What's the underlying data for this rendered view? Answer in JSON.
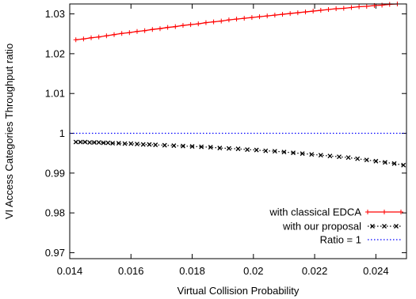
{
  "chart_data": {
    "type": "line",
    "xlabel": "Virtual Collision Probability",
    "ylabel": "VI Access Categories Throughput ratio",
    "xlim": [
      0.014,
      0.025
    ],
    "ylim": [
      0.9685,
      1.0325
    ],
    "x_ticks": [
      "0.014",
      "0.016",
      "0.018",
      "0.02",
      "0.022",
      "0.024"
    ],
    "y_ticks": [
      "0.97",
      "0.98",
      "0.99",
      "1",
      "1.01",
      "1.02",
      "1.03"
    ],
    "grid": false,
    "legend_position": "bottom-right",
    "series": [
      {
        "name": "with classical EDCA",
        "color": "#ff0000",
        "style": "solid",
        "marker": "plus",
        "x": [
          0.0142,
          0.01445,
          0.0147,
          0.01495,
          0.0152,
          0.01545,
          0.0157,
          0.01595,
          0.0162,
          0.01645,
          0.0167,
          0.01695,
          0.0172,
          0.01745,
          0.0177,
          0.01795,
          0.0182,
          0.01845,
          0.0187,
          0.01895,
          0.0192,
          0.01945,
          0.0197,
          0.01995,
          0.0202,
          0.02045,
          0.0207,
          0.02095,
          0.0212,
          0.02145,
          0.0217,
          0.02195,
          0.0222,
          0.02245,
          0.0227,
          0.02295,
          0.0232,
          0.02345,
          0.0237,
          0.02395,
          0.0242,
          0.02445,
          0.0247
        ],
        "y": [
          1.0235,
          1.0237,
          1.024,
          1.0242,
          1.0245,
          1.0248,
          1.0251,
          1.0253,
          1.0256,
          1.0258,
          1.0261,
          1.0263,
          1.0266,
          1.0268,
          1.0271,
          1.0273,
          1.0275,
          1.0278,
          1.028,
          1.0282,
          1.0285,
          1.0287,
          1.0289,
          1.0291,
          1.0293,
          1.0295,
          1.0297,
          1.0299,
          1.0301,
          1.0303,
          1.0305,
          1.0307,
          1.0309,
          1.0311,
          1.0313,
          1.0314,
          1.0316,
          1.0318,
          1.0319,
          1.0321,
          1.0322,
          1.0324,
          1.0325
        ]
      },
      {
        "name": "with our proposal",
        "color": "#000000",
        "style": "dotted",
        "marker": "cross",
        "x": [
          0.0142,
          0.01435,
          0.0145,
          0.01465,
          0.0148,
          0.01495,
          0.0151,
          0.01525,
          0.0154,
          0.0156,
          0.0158,
          0.016,
          0.0162,
          0.0164,
          0.0166,
          0.0168,
          0.0171,
          0.0174,
          0.0177,
          0.018,
          0.0183,
          0.0186,
          0.0189,
          0.0192,
          0.0195,
          0.0198,
          0.0201,
          0.0204,
          0.0207,
          0.021,
          0.0213,
          0.0216,
          0.0219,
          0.0222,
          0.0225,
          0.0228,
          0.0231,
          0.0234,
          0.0237,
          0.024,
          0.0243,
          0.0246,
          0.0249
        ],
        "y": [
          0.9978,
          0.9978,
          0.9978,
          0.9977,
          0.9977,
          0.9977,
          0.9976,
          0.9976,
          0.9975,
          0.9975,
          0.9974,
          0.9974,
          0.9973,
          0.9972,
          0.9972,
          0.9971,
          0.997,
          0.9969,
          0.9968,
          0.9967,
          0.9966,
          0.9965,
          0.9963,
          0.9962,
          0.9961,
          0.9959,
          0.9958,
          0.9956,
          0.9955,
          0.9953,
          0.9951,
          0.9949,
          0.9947,
          0.9945,
          0.9943,
          0.9941,
          0.9939,
          0.9936,
          0.9933,
          0.993,
          0.9927,
          0.9924,
          0.992
        ]
      },
      {
        "name": "Ratio = 1",
        "color": "#0000ff",
        "style": "dotted",
        "marker": "none",
        "x": [
          0.014,
          0.025
        ],
        "y": [
          1,
          1
        ]
      }
    ]
  }
}
